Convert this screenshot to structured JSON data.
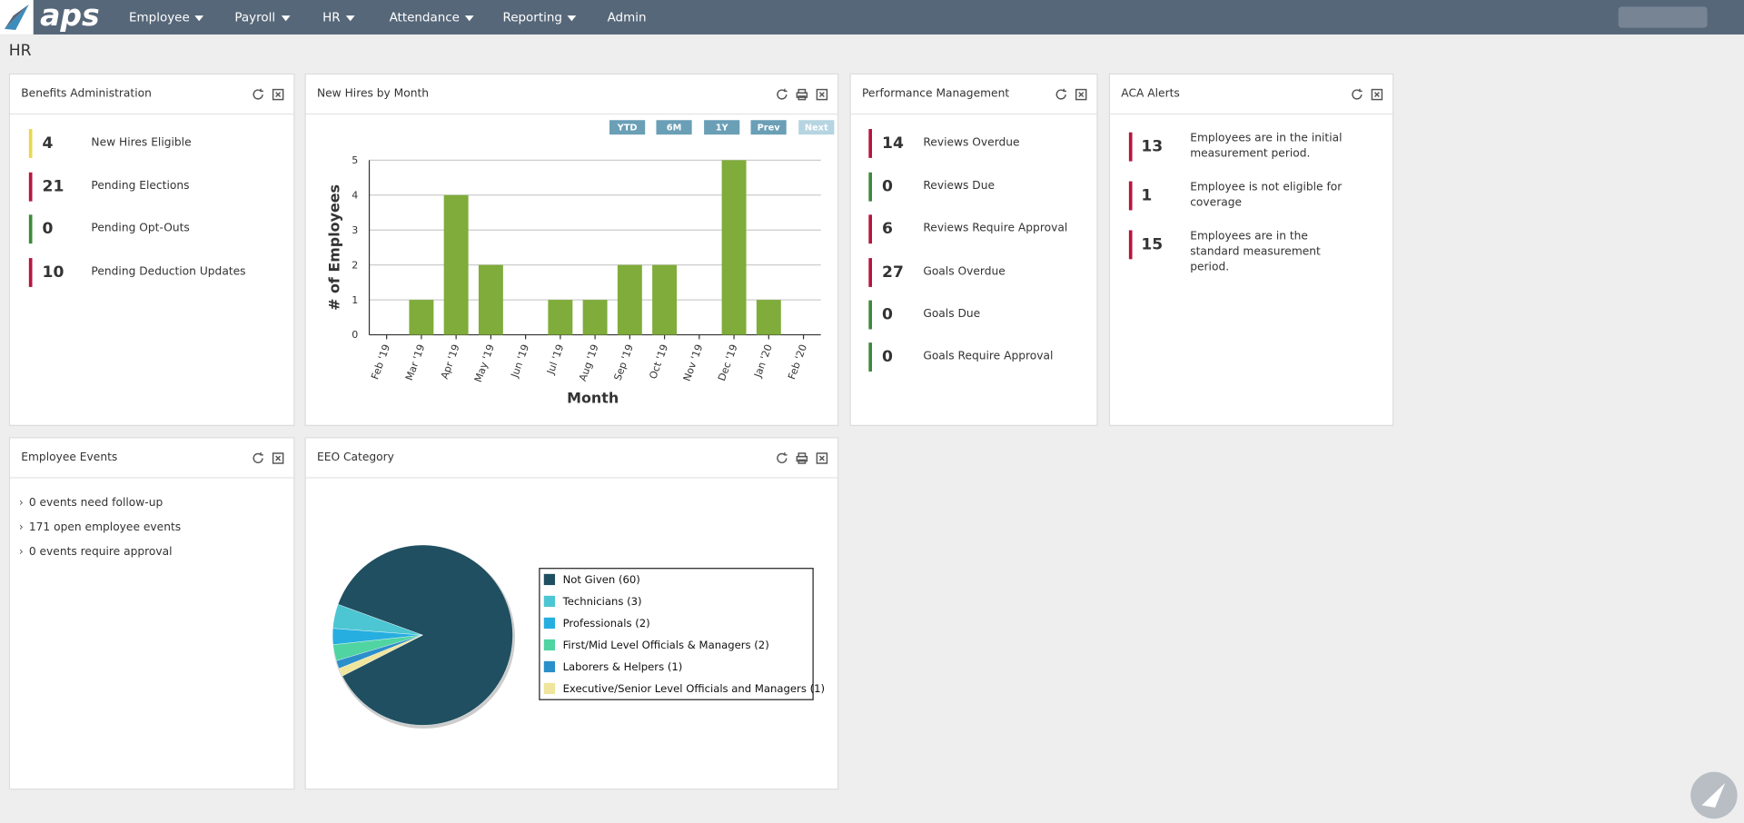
{
  "nav": {
    "logo": "aps",
    "items": [
      "Employee",
      "Payroll",
      "HR",
      "Attendance",
      "Reporting",
      "Admin"
    ],
    "dropdown": [
      true,
      true,
      true,
      true,
      true,
      false
    ]
  },
  "page_title": "HR",
  "benefits": {
    "title": "Benefits Administration",
    "rows": [
      {
        "value": 4,
        "label": "New Hires Eligible",
        "color": "#e8d84f"
      },
      {
        "value": 21,
        "label": "Pending Elections",
        "color": "#b5163f"
      },
      {
        "value": 0,
        "label": "Pending Opt-Outs",
        "color": "#3d8a3a"
      },
      {
        "value": 10,
        "label": "Pending Deduction Updates",
        "color": "#b5163f"
      }
    ]
  },
  "new_hires": {
    "title": "New Hires by Month",
    "buttons": [
      "YTD",
      "6M",
      "1Y",
      "Prev",
      "Next"
    ],
    "chart_data": {
      "type": "bar",
      "y_label": "# of Employees",
      "x_label": "Month",
      "categories": [
        "Feb '19",
        "Mar '19",
        "Apr '19",
        "May '19",
        "Jun '19",
        "Jul '19",
        "Aug '19",
        "Sep '19",
        "Oct '19",
        "Nov '19",
        "Dec '19",
        "Jan '20",
        "Feb '20"
      ],
      "values": [
        0,
        1,
        4,
        2,
        0,
        1,
        1,
        2,
        2,
        0,
        5,
        1,
        0
      ],
      "color": "#7fac3a",
      "ylim": [
        0,
        5
      ],
      "yticks": [
        0,
        1,
        2,
        3,
        4,
        5
      ],
      "grid": true
    }
  },
  "performance": {
    "title": "Performance Management",
    "rows": [
      {
        "value": 14,
        "label": "Reviews Overdue",
        "color": "#b5163f"
      },
      {
        "value": 0,
        "label": "Reviews Due",
        "color": "#3d8a3a"
      },
      {
        "value": 6,
        "label": "Reviews Require Approval",
        "color": "#b5163f"
      },
      {
        "value": 27,
        "label": "Goals Overdue",
        "color": "#b5163f"
      },
      {
        "value": 0,
        "label": "Goals Due",
        "color": "#3d8a3a"
      },
      {
        "value": 0,
        "label": "Goals Require Approval",
        "color": "#3d8a3a"
      }
    ]
  },
  "aca": {
    "title": "ACA Alerts",
    "rows": [
      {
        "value": 13,
        "label": "Employees are in the initial measurement period.",
        "color": "#b5163f"
      },
      {
        "value": 1,
        "label": "Employee is not eligible for coverage",
        "color": "#b5163f"
      },
      {
        "value": 15,
        "label": "Employees are in the standard measurement period.",
        "color": "#b5163f"
      }
    ]
  },
  "events": {
    "title": "Employee Events",
    "items": [
      "0 events need follow-up",
      "171 open employee events",
      "0 events require approval"
    ]
  },
  "eeo": {
    "title": "EEO Category",
    "chart_data": {
      "type": "pie",
      "categories": [
        "Not Given (60)",
        "Technicians (3)",
        "Professionals (2)",
        "First/Mid Level Officials & Managers (2)",
        "Laborers & Helpers (1)",
        "Executive/Senior Level Officials and Managers (1)"
      ],
      "values": [
        60,
        3,
        2,
        2,
        1,
        1
      ],
      "colors": [
        "#1f4f60",
        "#4cc6d2",
        "#27aee0",
        "#4fd4a2",
        "#2b8fc9",
        "#efe59c"
      ]
    }
  }
}
